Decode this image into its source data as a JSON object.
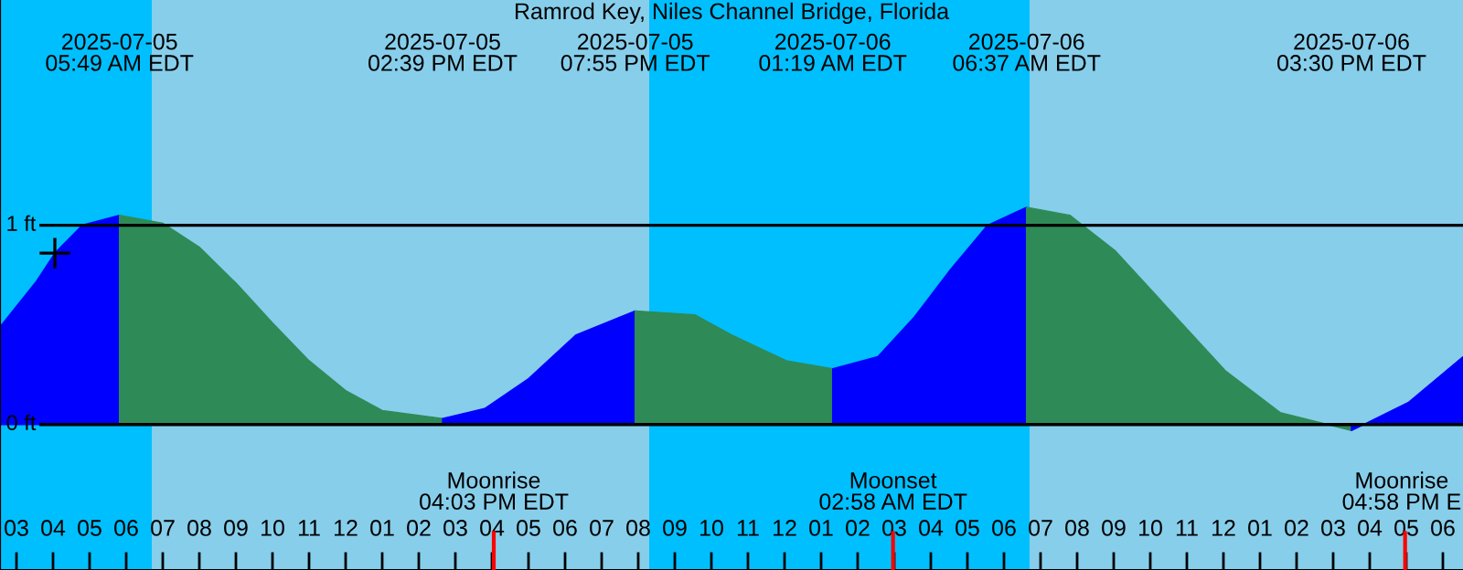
{
  "chart_data": {
    "type": "area",
    "title": "Ramrod Key, Niles Channel Bridge, Florida",
    "xlim": [
      "2025-07-05T02:33",
      "2025-07-06T18:33"
    ],
    "ylim": [
      -0.73,
      2.13
    ],
    "xticks": [
      {
        "value": "2025-07-05T03:00",
        "label": "03"
      },
      {
        "value": "2025-07-05T04:00",
        "label": "04"
      },
      {
        "value": "2025-07-05T05:00",
        "label": "05"
      },
      {
        "value": "2025-07-05T06:00",
        "label": "06"
      },
      {
        "value": "2025-07-05T07:00",
        "label": "07"
      },
      {
        "value": "2025-07-05T08:00",
        "label": "08"
      },
      {
        "value": "2025-07-05T09:00",
        "label": "09"
      },
      {
        "value": "2025-07-05T10:00",
        "label": "10"
      },
      {
        "value": "2025-07-05T11:00",
        "label": "11"
      },
      {
        "value": "2025-07-05T12:00",
        "label": "12"
      },
      {
        "value": "2025-07-05T13:00",
        "label": "01"
      },
      {
        "value": "2025-07-05T14:00",
        "label": "02"
      },
      {
        "value": "2025-07-05T15:00",
        "label": "03"
      },
      {
        "value": "2025-07-05T16:00",
        "label": "04"
      },
      {
        "value": "2025-07-05T17:00",
        "label": "05"
      },
      {
        "value": "2025-07-05T18:00",
        "label": "06"
      },
      {
        "value": "2025-07-05T19:00",
        "label": "07"
      },
      {
        "value": "2025-07-05T20:00",
        "label": "08"
      },
      {
        "value": "2025-07-05T21:00",
        "label": "09"
      },
      {
        "value": "2025-07-05T22:00",
        "label": "10"
      },
      {
        "value": "2025-07-05T23:00",
        "label": "11"
      },
      {
        "value": "2025-07-06T00:00",
        "label": "12"
      },
      {
        "value": "2025-07-06T01:00",
        "label": "01"
      },
      {
        "value": "2025-07-06T02:00",
        "label": "02"
      },
      {
        "value": "2025-07-06T03:00",
        "label": "03"
      },
      {
        "value": "2025-07-06T04:00",
        "label": "04"
      },
      {
        "value": "2025-07-06T05:00",
        "label": "05"
      },
      {
        "value": "2025-07-06T06:00",
        "label": "06"
      },
      {
        "value": "2025-07-06T07:00",
        "label": "07"
      },
      {
        "value": "2025-07-06T08:00",
        "label": "08"
      },
      {
        "value": "2025-07-06T09:00",
        "label": "09"
      },
      {
        "value": "2025-07-06T10:00",
        "label": "10"
      },
      {
        "value": "2025-07-06T11:00",
        "label": "11"
      },
      {
        "value": "2025-07-06T12:00",
        "label": "12"
      },
      {
        "value": "2025-07-06T13:00",
        "label": "01"
      },
      {
        "value": "2025-07-06T14:00",
        "label": "02"
      },
      {
        "value": "2025-07-06T15:00",
        "label": "03"
      },
      {
        "value": "2025-07-06T16:00",
        "label": "04"
      },
      {
        "value": "2025-07-06T17:00",
        "label": "05"
      },
      {
        "value": "2025-07-06T18:00",
        "label": "06"
      }
    ],
    "tick_labels": "x",
    "series": [
      {
        "color": "#0000ff",
        "x": [
          "2025-07-05T02:33",
          "2025-07-05T03:33",
          "2025-07-05T04:03",
          "2025-07-05T04:48",
          "2025-07-05T05:49"
        ],
        "values": [
          0.49,
          0.72,
          0.86,
          1.0,
          1.05
        ]
      },
      {
        "color": "#2e8b57",
        "x": [
          "2025-07-05T05:49",
          "2025-07-05T07:00",
          "2025-07-05T08:00",
          "2025-07-05T09:00",
          "2025-07-05T10:00",
          "2025-07-05T11:00",
          "2025-07-05T12:00",
          "2025-07-05T13:00",
          "2025-07-05T14:39"
        ],
        "values": [
          1.05,
          1.01,
          0.89,
          0.71,
          0.51,
          0.32,
          0.17,
          0.07,
          0.03
        ]
      },
      {
        "color": "#0000ff",
        "x": [
          "2025-07-05T14:39",
          "2025-07-05T15:48",
          "2025-07-05T17:00",
          "2025-07-05T18:18",
          "2025-07-05T19:55"
        ],
        "values": [
          0.03,
          0.08,
          0.23,
          0.45,
          0.57
        ]
      },
      {
        "color": "#2e8b57",
        "x": [
          "2025-07-05T19:55",
          "2025-07-05T21:33",
          "2025-07-05T22:33",
          "2025-07-06T00:03",
          "2025-07-06T01:19"
        ],
        "values": [
          0.57,
          0.55,
          0.45,
          0.32,
          0.28
        ]
      },
      {
        "color": "#0000ff",
        "x": [
          "2025-07-06T01:19",
          "2025-07-06T02:33",
          "2025-07-06T03:33",
          "2025-07-06T04:33",
          "2025-07-06T05:33",
          "2025-07-06T06:37"
        ],
        "values": [
          0.28,
          0.34,
          0.54,
          0.78,
          1.0,
          1.09
        ]
      },
      {
        "color": "#2e8b57",
        "x": [
          "2025-07-06T06:37",
          "2025-07-06T07:48",
          "2025-07-06T09:03",
          "2025-07-06T10:33",
          "2025-07-06T12:03",
          "2025-07-06T13:33",
          "2025-07-06T15:30"
        ],
        "values": [
          1.09,
          1.05,
          0.87,
          0.57,
          0.27,
          0.06,
          -0.03
        ]
      },
      {
        "color": "#0000ff",
        "x": [
          "2025-07-06T15:30",
          "2025-07-06T17:03",
          "2025-07-06T18:33"
        ],
        "values": [
          -0.03,
          0.11,
          0.34
        ]
      },
      {
        "type": "scatter",
        "color": "#000000",
        "marker": "cross",
        "x": [
          "2025-07-05T04:03"
        ],
        "values": [
          0.86
        ]
      }
    ],
    "ref_lines": [
      {
        "axis": "y",
        "value": 0,
        "label": "0 ft",
        "color": "#000000"
      },
      {
        "axis": "y",
        "value": 1,
        "label": "1 ft",
        "color": "#000000"
      },
      {
        "axis": "x",
        "value": "2025-07-05T16:03",
        "label": "Moonrise\n04:03 PM EDT",
        "color": "#ff0000"
      },
      {
        "axis": "x",
        "value": "2025-07-06T02:58",
        "label": "Moonset\n02:58 AM EDT",
        "color": "#ff0000"
      },
      {
        "axis": "x",
        "value": "2025-07-06T16:58",
        "label": "Moonrise\n04:58 PM E",
        "color": "#ff0000"
      }
    ],
    "bands": [
      {
        "axis": "x",
        "from": "2025-07-05T02:33",
        "to": "2025-07-05T06:42",
        "color": "#00bfff"
      },
      {
        "axis": "x",
        "from": "2025-07-05T06:42",
        "to": "2025-07-05T20:18",
        "color": "#87ceeb"
      },
      {
        "axis": "x",
        "from": "2025-07-05T20:18",
        "to": "2025-07-06T06:42",
        "color": "#00bfff"
      },
      {
        "axis": "x",
        "from": "2025-07-06T06:42",
        "to": "2025-07-06T18:33",
        "color": "#87ceeb"
      }
    ],
    "annotations": [
      "2025-07-05\n05:49 AM EDT",
      "2025-07-05\n02:39 PM EDT",
      "2025-07-05\n07:55 PM EDT",
      "2025-07-06\n01:19 AM EDT",
      "2025-07-06\n06:37 AM EDT",
      "2025-07-06\n03:30 PM EDT"
    ]
  }
}
